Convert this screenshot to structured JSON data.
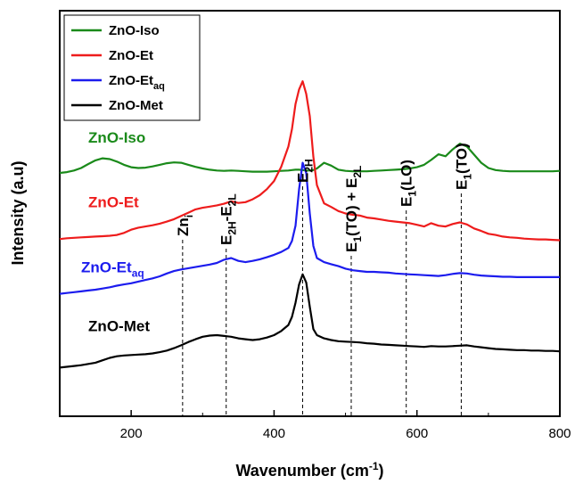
{
  "chart_data": {
    "type": "line",
    "title": "",
    "xlabel": "Wavenumber (cm",
    "xlabel_sup": "-1",
    "xlabel_end": ")",
    "ylabel": "Intensity (a.u)",
    "xlim": [
      100,
      800
    ],
    "ylim": [
      0,
      1
    ],
    "x_ticks": [
      200,
      400,
      600,
      800
    ],
    "y_ticks_labeled": false,
    "grid": false,
    "legend_position": "top-left",
    "x": [
      100,
      110,
      120,
      130,
      140,
      150,
      160,
      170,
      180,
      190,
      200,
      210,
      220,
      230,
      240,
      250,
      260,
      270,
      280,
      290,
      300,
      310,
      320,
      330,
      340,
      350,
      360,
      370,
      380,
      390,
      400,
      410,
      420,
      425,
      430,
      435,
      440,
      445,
      450,
      455,
      460,
      470,
      480,
      490,
      500,
      510,
      520,
      530,
      540,
      550,
      560,
      570,
      580,
      590,
      600,
      610,
      620,
      630,
      640,
      650,
      660,
      670,
      680,
      690,
      700,
      710,
      720,
      730,
      740,
      750,
      760,
      770,
      780,
      790,
      800
    ],
    "series": [
      {
        "name": "ZnO-Iso",
        "name_sub": "",
        "color": "#1a8a1a",
        "values": [
          0.6,
          0.602,
          0.606,
          0.612,
          0.622,
          0.631,
          0.636,
          0.634,
          0.628,
          0.62,
          0.614,
          0.612,
          0.613,
          0.616,
          0.62,
          0.624,
          0.626,
          0.625,
          0.62,
          0.615,
          0.611,
          0.608,
          0.606,
          0.605,
          0.606,
          0.605,
          0.604,
          0.603,
          0.603,
          0.603,
          0.604,
          0.605,
          0.606,
          0.607,
          0.608,
          0.608,
          0.607,
          0.606,
          0.606,
          0.607,
          0.611,
          0.625,
          0.618,
          0.608,
          0.605,
          0.604,
          0.604,
          0.604,
          0.605,
          0.606,
          0.607,
          0.608,
          0.609,
          0.611,
          0.614,
          0.62,
          0.632,
          0.646,
          0.641,
          0.658,
          0.672,
          0.665,
          0.645,
          0.625,
          0.612,
          0.607,
          0.605,
          0.604,
          0.604,
          0.604,
          0.604,
          0.604,
          0.604,
          0.604,
          0.605
        ]
      },
      {
        "name": "ZnO-Et",
        "name_sub": "",
        "color": "#ee1c1c",
        "values": [
          0.437,
          0.439,
          0.44,
          0.441,
          0.442,
          0.443,
          0.444,
          0.445,
          0.447,
          0.452,
          0.46,
          0.465,
          0.468,
          0.471,
          0.475,
          0.48,
          0.486,
          0.494,
          0.502,
          0.51,
          0.514,
          0.517,
          0.52,
          0.524,
          0.53,
          0.526,
          0.528,
          0.535,
          0.545,
          0.56,
          0.58,
          0.615,
          0.665,
          0.708,
          0.77,
          0.806,
          0.826,
          0.795,
          0.74,
          0.64,
          0.57,
          0.525,
          0.516,
          0.506,
          0.5,
          0.497,
          0.495,
          0.49,
          0.488,
          0.485,
          0.482,
          0.48,
          0.478,
          0.476,
          0.472,
          0.468,
          0.476,
          0.47,
          0.468,
          0.474,
          0.478,
          0.473,
          0.463,
          0.457,
          0.45,
          0.447,
          0.443,
          0.441,
          0.44,
          0.438,
          0.437,
          0.436,
          0.436,
          0.435,
          0.434
        ]
      },
      {
        "name": "ZnO-Et",
        "name_sub": "aq",
        "color": "#1c1cee",
        "values": [
          0.302,
          0.304,
          0.306,
          0.308,
          0.31,
          0.312,
          0.315,
          0.318,
          0.322,
          0.325,
          0.328,
          0.332,
          0.336,
          0.34,
          0.345,
          0.352,
          0.358,
          0.362,
          0.365,
          0.368,
          0.371,
          0.374,
          0.378,
          0.386,
          0.39,
          0.383,
          0.38,
          0.383,
          0.387,
          0.392,
          0.398,
          0.405,
          0.415,
          0.432,
          0.47,
          0.56,
          0.625,
          0.6,
          0.5,
          0.42,
          0.39,
          0.38,
          0.375,
          0.37,
          0.364,
          0.36,
          0.358,
          0.356,
          0.356,
          0.355,
          0.354,
          0.352,
          0.351,
          0.35,
          0.349,
          0.348,
          0.347,
          0.346,
          0.348,
          0.351,
          0.353,
          0.352,
          0.349,
          0.347,
          0.346,
          0.345,
          0.344,
          0.344,
          0.343,
          0.343,
          0.343,
          0.343,
          0.343,
          0.343,
          0.343
        ]
      },
      {
        "name": "ZnO-Met",
        "name_sub": "",
        "color": "#000000",
        "values": [
          0.12,
          0.122,
          0.124,
          0.126,
          0.129,
          0.132,
          0.138,
          0.144,
          0.148,
          0.15,
          0.151,
          0.152,
          0.153,
          0.155,
          0.158,
          0.162,
          0.168,
          0.175,
          0.183,
          0.19,
          0.196,
          0.199,
          0.2,
          0.198,
          0.196,
          0.192,
          0.19,
          0.188,
          0.19,
          0.194,
          0.2,
          0.21,
          0.225,
          0.245,
          0.28,
          0.325,
          0.35,
          0.33,
          0.27,
          0.215,
          0.2,
          0.192,
          0.188,
          0.185,
          0.184,
          0.183,
          0.182,
          0.18,
          0.179,
          0.177,
          0.176,
          0.175,
          0.174,
          0.173,
          0.172,
          0.171,
          0.173,
          0.172,
          0.172,
          0.173,
          0.174,
          0.175,
          0.172,
          0.17,
          0.168,
          0.166,
          0.165,
          0.164,
          0.163,
          0.163,
          0.162,
          0.162,
          0.161,
          0.161,
          0.16
        ]
      }
    ],
    "peak_markers": [
      {
        "x": 272,
        "label": "Zn",
        "sub": "i",
        "mid1": "",
        "sub2": "",
        "end": ""
      },
      {
        "x": 333,
        "label": "E",
        "sub": "2H",
        "mid1": "-E",
        "sub2": "2L",
        "end": ""
      },
      {
        "x": 440,
        "label": "E",
        "sub": "2H",
        "mid1": "",
        "sub2": "",
        "end": ""
      },
      {
        "x": 508,
        "label": "E",
        "sub": "1",
        "mid1": "(TO) + E",
        "sub2": "2L",
        "end": ""
      },
      {
        "x": 585,
        "label": "E",
        "sub": "1",
        "mid1": "(LO)",
        "sub2": "",
        "end": ""
      },
      {
        "x": 662,
        "label": "E",
        "sub": "1",
        "mid1": "(TO)",
        "sub2": "",
        "end": ""
      }
    ],
    "series_annotations": [
      {
        "series_index": 0,
        "text": "ZnO-Iso",
        "sub": "",
        "x": 140,
        "y": 0.675
      },
      {
        "series_index": 1,
        "text": "ZnO-Et",
        "sub": "",
        "x": 140,
        "y": 0.515
      },
      {
        "series_index": 2,
        "text": "ZnO-Et",
        "sub": "aq",
        "x": 130,
        "y": 0.355
      },
      {
        "series_index": 3,
        "text": "ZnO-Met",
        "sub": "",
        "x": 140,
        "y": 0.21
      }
    ]
  }
}
